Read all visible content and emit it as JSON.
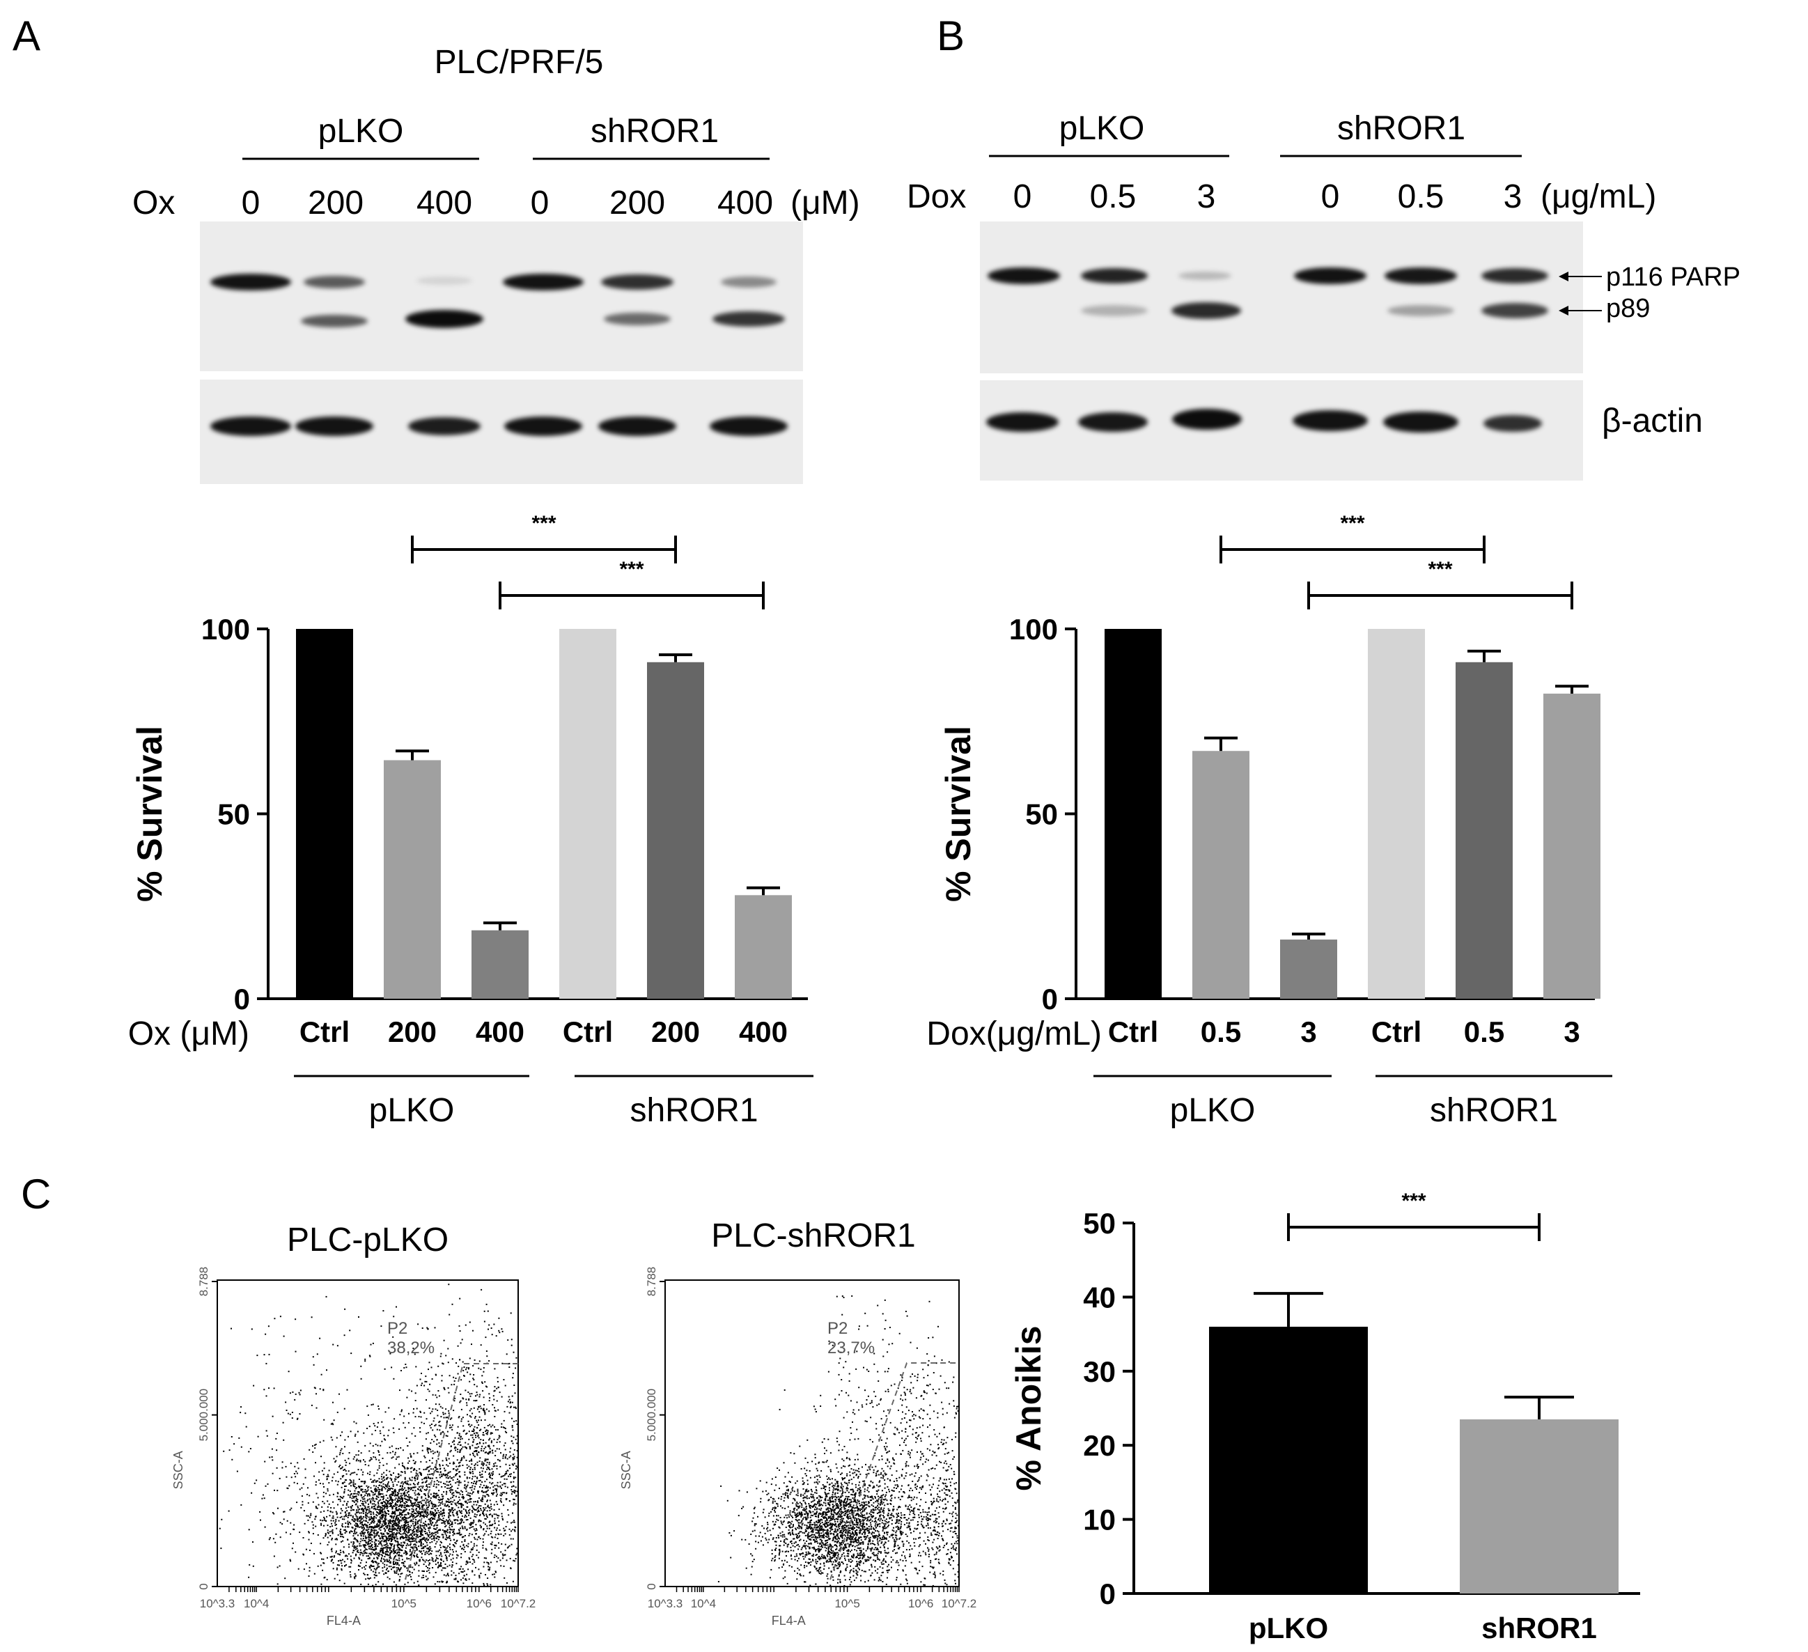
{
  "panel_labels": {
    "a": "A",
    "b": "B",
    "c": "C"
  },
  "panel_a": {
    "cell_line": "PLC/PRF/5",
    "groups": [
      "pLKO",
      "shROR1"
    ],
    "treatment_label": "Ox",
    "doses": [
      "0",
      "200",
      "400",
      "0",
      "200",
      "400"
    ],
    "unit": "(μM)"
  },
  "panel_b": {
    "groups": [
      "pLKO",
      "shROR1"
    ],
    "treatment_label": "Dox",
    "doses": [
      "0",
      "0.5",
      "3",
      "0",
      "0.5",
      "3"
    ],
    "unit": "(μg/mL)",
    "band_labels": {
      "p116": "p116 PARP",
      "p89": "p89",
      "actin": "β-actin"
    }
  },
  "panel_c": {
    "flow_titles": [
      "PLC-pLKO",
      "PLC-shROR1"
    ],
    "flow_x_axis": "FL4-A",
    "flow_y_axis": "SSC-A",
    "flow_y_ticks": [
      "0",
      "5.000.000",
      "8.788"
    ],
    "flow_x_ticks": [
      "10^3.3",
      "10^4",
      "10^5",
      "10^6",
      "10^7.2"
    ],
    "gate_name": "P2",
    "gate_values": [
      "38,2%",
      "23,7%"
    ]
  },
  "chart_data": [
    {
      "type": "bar",
      "panel": "A",
      "xprefix": "Ox (μM)",
      "categories": [
        "Ctrl",
        "200",
        "400",
        "Ctrl",
        "200",
        "400"
      ],
      "group_labels": [
        "pLKO",
        "shROR1"
      ],
      "values": [
        100,
        64.5,
        18.5,
        100,
        91,
        28
      ],
      "errors": [
        0,
        2.5,
        2,
        0,
        2,
        2
      ],
      "colors": [
        "#000000",
        "#a0a0a0",
        "#808080",
        "#d4d4d4",
        "#666666",
        "#a0a0a0"
      ],
      "ylabel": "% Survival",
      "ylim": [
        0,
        100
      ],
      "yticks": [
        "0",
        "50",
        "100"
      ],
      "significance": [
        {
          "from": 1,
          "to": 4,
          "label": "***"
        },
        {
          "from": 2,
          "to": 5,
          "label": "***"
        }
      ]
    },
    {
      "type": "bar",
      "panel": "B",
      "xprefix": "Dox(μg/mL)",
      "categories": [
        "Ctrl",
        "0.5",
        "3",
        "Ctrl",
        "0.5",
        "3"
      ],
      "group_labels": [
        "pLKO",
        "shROR1"
      ],
      "values": [
        100,
        67,
        16,
        100,
        91,
        82.5
      ],
      "errors": [
        0,
        3.5,
        1.5,
        0,
        3,
        2
      ],
      "colors": [
        "#000000",
        "#a0a0a0",
        "#808080",
        "#d4d4d4",
        "#666666",
        "#a0a0a0"
      ],
      "ylabel": "% Survival",
      "ylim": [
        0,
        100
      ],
      "yticks": [
        "0",
        "50",
        "100"
      ],
      "significance": [
        {
          "from": 1,
          "to": 4,
          "label": "***"
        },
        {
          "from": 2,
          "to": 5,
          "label": "***"
        }
      ]
    },
    {
      "type": "bar",
      "panel": "C",
      "categories": [
        "pLKO",
        "shROR1"
      ],
      "values": [
        36,
        23.5
      ],
      "errors": [
        4.5,
        3
      ],
      "colors": [
        "#000000",
        "#a0a0a0"
      ],
      "ylabel": "% Anoikis",
      "ylim": [
        0,
        50
      ],
      "yticks": [
        "0",
        "10",
        "20",
        "30",
        "40",
        "50"
      ],
      "significance": [
        {
          "from": 0,
          "to": 1,
          "label": "***"
        }
      ]
    }
  ]
}
